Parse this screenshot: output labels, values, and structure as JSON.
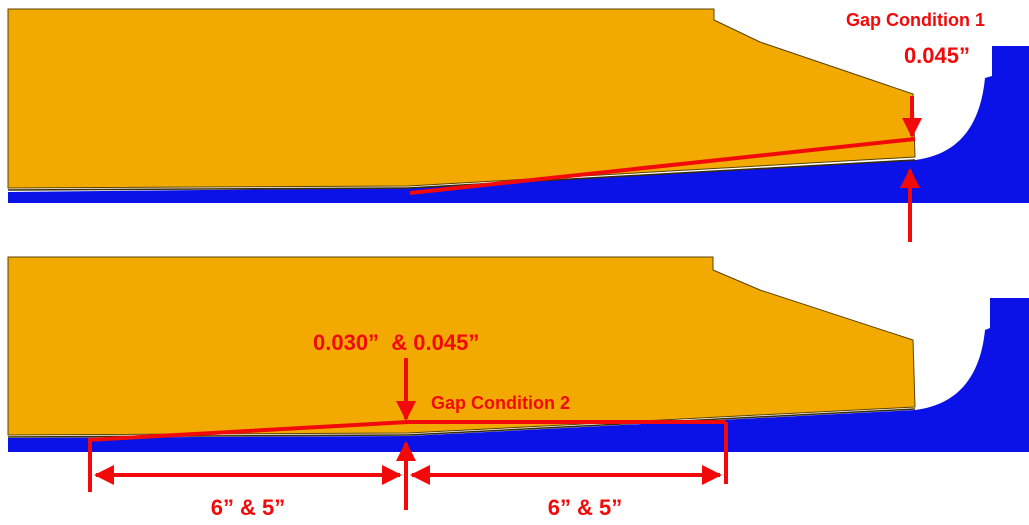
{
  "colors": {
    "part": "#F2AA00",
    "part_edge": "#5A4300",
    "base": "#0A12E8",
    "marker": "#F20A0A"
  },
  "panels": [
    {
      "gap_label": "Gap Condition 1",
      "gap_value": "0.045”"
    },
    {
      "gap_label": "Gap Condition 2",
      "gap_value": "0.030”  & 0.045”",
      "dimensions": [
        "6” & 5”",
        "6” & 5”"
      ]
    }
  ]
}
